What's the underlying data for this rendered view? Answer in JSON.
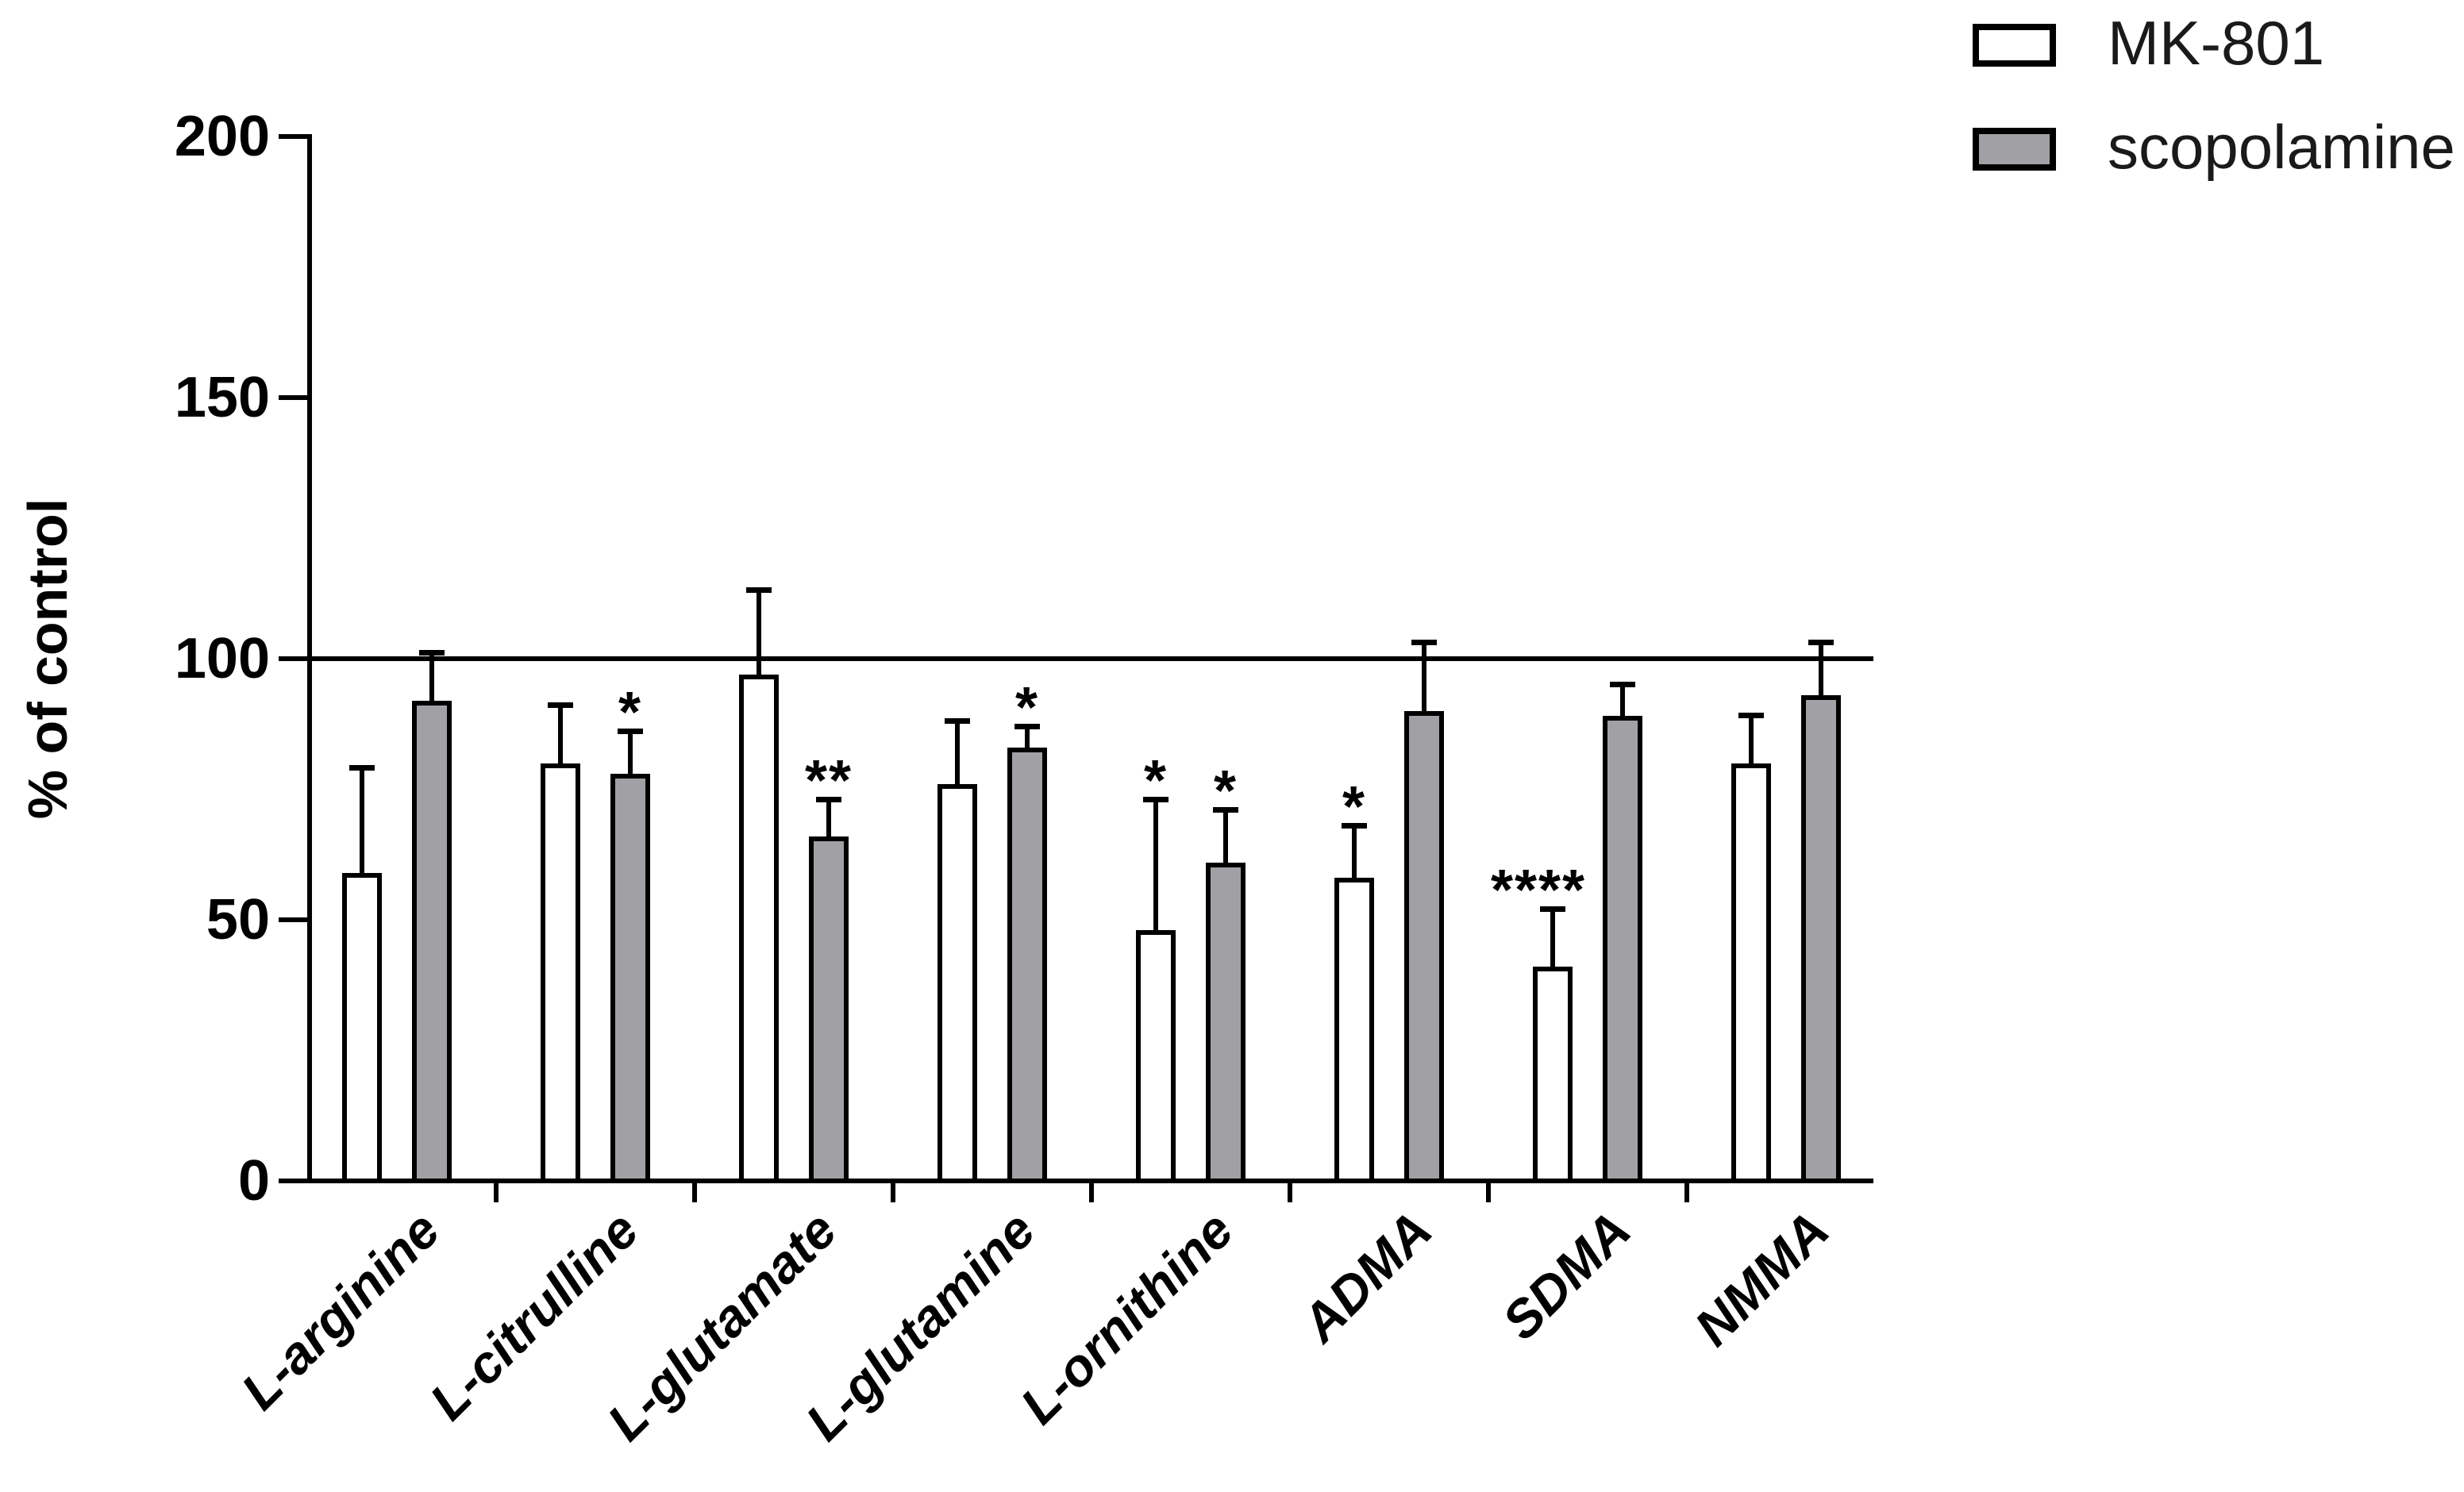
{
  "figure": {
    "background": "#ffffff",
    "line_color": "#000000",
    "gray_fill": "#a1a1a5",
    "white_fill": "#ffffff"
  },
  "chart_data": {
    "type": "bar",
    "title": "",
    "xlabel": "",
    "ylabel": "% of control",
    "ylim": [
      0,
      200
    ],
    "yticks": [
      0,
      50,
      100,
      150,
      200
    ],
    "reference_line": 100,
    "grid": false,
    "legend_position": "top-right",
    "categories": [
      "L-arginine",
      "L-citrulline",
      "L-glutamate",
      "L-glutamine",
      "L-ornithine",
      "ADMA",
      "SDMA",
      "NMMA"
    ],
    "series": [
      {
        "name": "MK-801",
        "fill": "#ffffff",
        "values": [
          59,
          80,
          97,
          76,
          48,
          58,
          41,
          80
        ],
        "errors": [
          20,
          11,
          16,
          12,
          25,
          10,
          11,
          9
        ],
        "significance": [
          "",
          "",
          "",
          "",
          "*",
          "*",
          "****",
          ""
        ]
      },
      {
        "name": "scopolamine",
        "fill": "#a1a1a5",
        "values": [
          92,
          78,
          66,
          83,
          61,
          90,
          89,
          93
        ],
        "errors": [
          9,
          8,
          7,
          4,
          10,
          13,
          6,
          10
        ],
        "significance": [
          "",
          "*",
          "**",
          "*",
          "*",
          "",
          "",
          ""
        ]
      }
    ]
  },
  "legend": {
    "items": [
      {
        "label": "MK-801"
      },
      {
        "label": "scopolamine"
      }
    ]
  }
}
